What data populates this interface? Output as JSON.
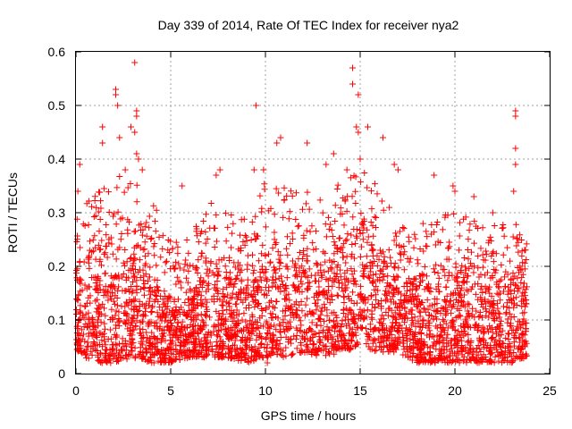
{
  "chart_data": {
    "type": "scatter",
    "title": "Day 339 of 2014, Rate Of TEC Index for receiver nya2",
    "xlabel": "GPS time / hours",
    "ylabel": "ROTI / TECUs",
    "xlim": [
      0,
      25
    ],
    "ylim": [
      0,
      0.6
    ],
    "x_ticks": [
      0,
      5,
      10,
      15,
      20,
      25
    ],
    "y_ticks": [
      0,
      0.1,
      0.2,
      0.3,
      0.4,
      0.5,
      0.6
    ],
    "x_tick_labels": [
      "0",
      "5",
      "10",
      "15",
      "20",
      "25"
    ],
    "y_tick_labels": [
      "0",
      "0.1",
      "0.2",
      "0.3",
      "0.4",
      "0.5",
      "0.6"
    ],
    "grid": true,
    "marker": "plus",
    "series_color": "#ff0000",
    "x_range_of_data": [
      0,
      23.8
    ],
    "envelope": [
      [
        0,
        0.04,
        0.26
      ],
      [
        1,
        0.02,
        0.3
      ],
      [
        2,
        0.02,
        0.32
      ],
      [
        3,
        0.03,
        0.34
      ],
      [
        4,
        0.02,
        0.28
      ],
      [
        5,
        0.02,
        0.22
      ],
      [
        6,
        0.03,
        0.22
      ],
      [
        7,
        0.03,
        0.28
      ],
      [
        8,
        0.03,
        0.26
      ],
      [
        9,
        0.02,
        0.26
      ],
      [
        10,
        0.03,
        0.32
      ],
      [
        11,
        0.03,
        0.31
      ],
      [
        12,
        0.04,
        0.3
      ],
      [
        13,
        0.03,
        0.28
      ],
      [
        14,
        0.04,
        0.33
      ],
      [
        15,
        0.05,
        0.34
      ],
      [
        16,
        0.04,
        0.3
      ],
      [
        17,
        0.04,
        0.25
      ],
      [
        18,
        0.02,
        0.24
      ],
      [
        19,
        0.02,
        0.26
      ],
      [
        20,
        0.02,
        0.26
      ],
      [
        21,
        0.02,
        0.25
      ],
      [
        22,
        0.02,
        0.24
      ],
      [
        23,
        0.02,
        0.26
      ],
      [
        23.8,
        0.03,
        0.22
      ]
    ],
    "outliers": [
      [
        0.2,
        0.39
      ],
      [
        0.1,
        0.34
      ],
      [
        2.1,
        0.53
      ],
      [
        2.1,
        0.52
      ],
      [
        2.2,
        0.5
      ],
      [
        1.4,
        0.46
      ],
      [
        1.4,
        0.43
      ],
      [
        2.3,
        0.44
      ],
      [
        2.9,
        0.46
      ],
      [
        3.1,
        0.45
      ],
      [
        3.2,
        0.49
      ],
      [
        3.2,
        0.48
      ],
      [
        3.1,
        0.58
      ],
      [
        3.3,
        0.4
      ],
      [
        3.2,
        0.41
      ],
      [
        2.6,
        0.38
      ],
      [
        3.5,
        0.38
      ],
      [
        5.6,
        0.35
      ],
      [
        7.4,
        0.37
      ],
      [
        7.6,
        0.38
      ],
      [
        9.5,
        0.5
      ],
      [
        9.4,
        0.38
      ],
      [
        10.6,
        0.43
      ],
      [
        10.8,
        0.44
      ],
      [
        9.9,
        0.38
      ],
      [
        12.2,
        0.43
      ],
      [
        13.2,
        0.39
      ],
      [
        13.6,
        0.41
      ],
      [
        14.6,
        0.57
      ],
      [
        14.6,
        0.54
      ],
      [
        14.9,
        0.52
      ],
      [
        14.8,
        0.46
      ],
      [
        14.9,
        0.45
      ],
      [
        15.4,
        0.46
      ],
      [
        16.2,
        0.44
      ],
      [
        14.3,
        0.38
      ],
      [
        15.0,
        0.4
      ],
      [
        16.8,
        0.39
      ],
      [
        17.0,
        0.38
      ],
      [
        18.9,
        0.37
      ],
      [
        20.0,
        0.34
      ],
      [
        23.2,
        0.49
      ],
      [
        23.2,
        0.48
      ],
      [
        23.2,
        0.42
      ],
      [
        23.2,
        0.39
      ],
      [
        23.1,
        0.34
      ],
      [
        19.9,
        0.35
      ],
      [
        21.0,
        0.33
      ],
      [
        22.0,
        0.3
      ],
      [
        10.1,
        0.02
      ]
    ]
  }
}
